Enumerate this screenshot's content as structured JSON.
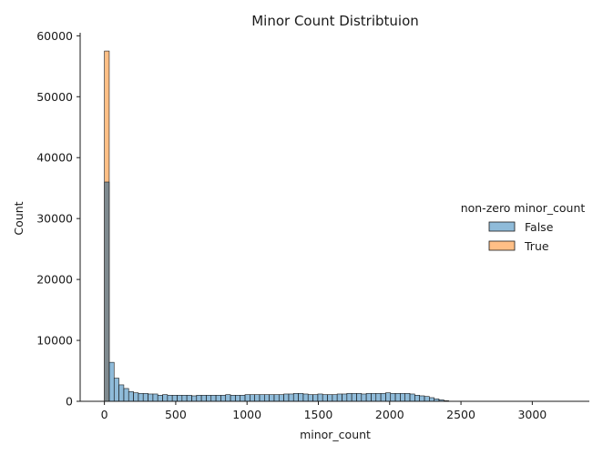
{
  "chart_data": {
    "type": "bar",
    "title": "Minor Count Distribtuion",
    "xlabel": "minor_count",
    "ylabel": "Count",
    "xlim": [
      -170,
      3400
    ],
    "ylim": [
      0,
      60500
    ],
    "xticks": [
      0,
      500,
      1000,
      1500,
      2000,
      2500,
      3000
    ],
    "yticks": [
      0,
      10000,
      20000,
      30000,
      40000,
      50000,
      60000
    ],
    "grid": false,
    "legend": {
      "title": "non-zero minor_count",
      "position": "right",
      "entries": [
        "False",
        "True"
      ]
    },
    "colors": {
      "False": "#1f77b4",
      "True": "#ff7f0e",
      "overlap": "#7f8a8f",
      "edge": "#1a1a1a"
    },
    "bin_width": 34,
    "series": [
      {
        "name": "False",
        "bin_start": 0,
        "values": [
          36000,
          6400,
          3800,
          2700,
          2100,
          1600,
          1400,
          1300,
          1300,
          1200,
          1200,
          1000,
          1100,
          1000,
          1000,
          1000,
          1000,
          1000,
          900,
          1000,
          1000,
          1000,
          1000,
          1000,
          1000,
          1100,
          1000,
          1000,
          1000,
          1100,
          1100,
          1100,
          1100,
          1100,
          1100,
          1100,
          1100,
          1200,
          1200,
          1300,
          1300,
          1200,
          1100,
          1100,
          1200,
          1100,
          1100,
          1100,
          1200,
          1200,
          1300,
          1300,
          1300,
          1200,
          1300,
          1300,
          1300,
          1300,
          1400,
          1300,
          1300,
          1300,
          1300,
          1200,
          1000,
          900,
          800,
          600,
          400,
          250,
          100
        ]
      },
      {
        "name": "True",
        "bin_start": 0,
        "values": [
          57500
        ]
      }
    ]
  }
}
